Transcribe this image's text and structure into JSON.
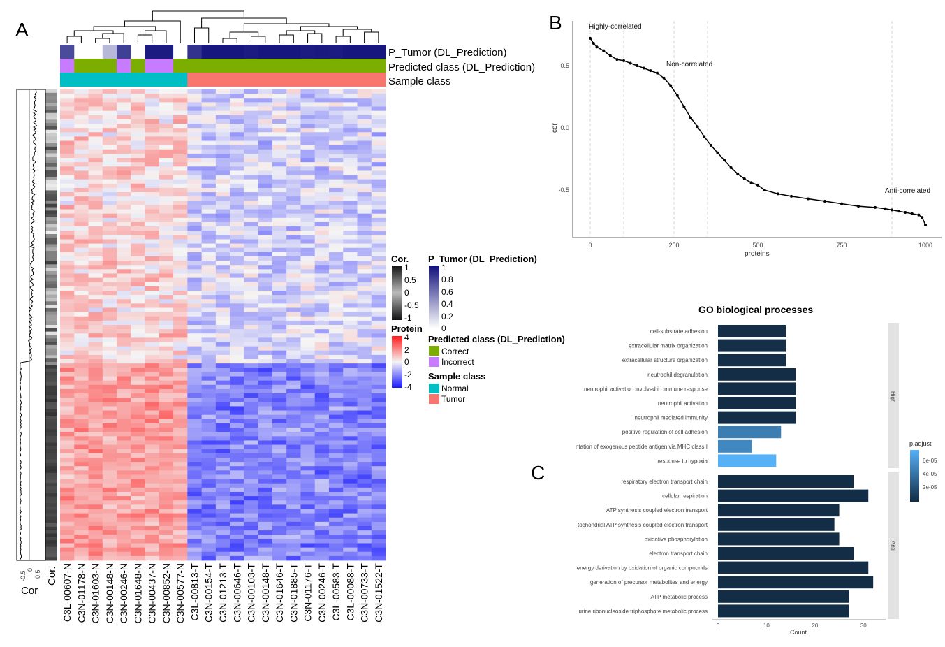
{
  "panels": {
    "a": "A",
    "b": "B",
    "c": "C"
  },
  "heatmap": {
    "annotation_labels": [
      "P_Tumor (DL_Prediction)",
      "Predicted class (DL_Prediction)",
      "Sample class"
    ],
    "samples": [
      "C3L-00607-N",
      "C3N-01178-N",
      "C3N-01603-N",
      "C3N-00148-N",
      "C3N-00246-N",
      "C3N-01648-N",
      "C3N-00437-N",
      "C3N-00852-N",
      "C3N-00577-N",
      "C3L-00813-T",
      "C3N-00154-T",
      "C3N-01213-T",
      "C3N-00646-T",
      "C3N-00103-T",
      "C3N-00148-T",
      "C3N-01646-T",
      "C3N-01885-T",
      "C3N-01176-T",
      "C3N-00246-T",
      "C3L-00583-T",
      "C3L-00088-T",
      "C3N-00733-T",
      "C3N-01522-T"
    ],
    "p_tumor": [
      0.75,
      0,
      0,
      0.3,
      0.8,
      0,
      0.95,
      0.95,
      0,
      0.85,
      0.97,
      0.97,
      0.97,
      0.95,
      0.97,
      0.97,
      0.97,
      0.95,
      0.96,
      0.95,
      0.97,
      0.97,
      0.97
    ],
    "predicted_class": [
      "Incorrect",
      "Correct",
      "Correct",
      "Correct",
      "Incorrect",
      "Correct",
      "Incorrect",
      "Incorrect",
      "Correct",
      "Correct",
      "Correct",
      "Correct",
      "Correct",
      "Correct",
      "Correct",
      "Correct",
      "Correct",
      "Correct",
      "Correct",
      "Correct",
      "Correct",
      "Correct",
      "Correct"
    ],
    "sample_class": [
      "Normal",
      "Normal",
      "Normal",
      "Normal",
      "Normal",
      "Normal",
      "Normal",
      "Normal",
      "Normal",
      "Tumor",
      "Tumor",
      "Tumor",
      "Tumor",
      "Tumor",
      "Tumor",
      "Tumor",
      "Tumor",
      "Tumor",
      "Tumor",
      "Tumor",
      "Tumor",
      "Tumor",
      "Tumor"
    ],
    "cor_axis_label": "Cor",
    "cor_axis_ticks": [
      "-0.5",
      "0",
      "0.5"
    ],
    "cor_column_label": "Cor."
  },
  "legends": {
    "cor": {
      "title": "Cor.",
      "ticks": [
        "1",
        "0.5",
        "0",
        "-0.5",
        "-1"
      ]
    },
    "protein": {
      "title": "Protein",
      "ticks": [
        "4",
        "2",
        "0",
        "-2",
        "-4"
      ]
    },
    "p_tumor": {
      "title": "P_Tumor (DL_Prediction)",
      "ticks": [
        "1",
        "0.8",
        "0.6",
        "0.4",
        "0.2",
        "0"
      ]
    },
    "predicted_class": {
      "title": "Predicted class (DL_Prediction)",
      "items": [
        "Correct",
        "Incorrect"
      ]
    },
    "sample_class": {
      "title": "Sample class",
      "items": [
        "Normal",
        "Tumor"
      ]
    }
  },
  "colors": {
    "correct": "#7cae00",
    "incorrect": "#c77cff",
    "normal": "#00bfc4",
    "tumor": "#f8766d",
    "p_high": "#0f0f7a",
    "p_low": "#ffffff",
    "heat_low": "#1818ff",
    "heat_mid": "#f5f5f5",
    "heat_high": "#ff1a1a",
    "go_dark": "#132b43",
    "go_light": "#56b1f7"
  },
  "chart_data": [
    {
      "type": "scatter",
      "panel": "B",
      "xlabel": "proteins",
      "ylabel": "cor",
      "xlim": [
        0,
        1000
      ],
      "ylim": [
        -0.8,
        0.75
      ],
      "x_ticks": [
        "0",
        "250",
        "500",
        "750",
        "1000"
      ],
      "y_ticks": [
        "0.5",
        "0.0",
        "-0.5"
      ],
      "annotations": [
        "Highly-correlated",
        "Non-correlated",
        "Anti-correlated"
      ],
      "x": [
        0,
        10,
        20,
        40,
        60,
        80,
        100,
        120,
        140,
        160,
        180,
        200,
        220,
        240,
        260,
        280,
        300,
        320,
        340,
        360,
        380,
        400,
        420,
        440,
        460,
        480,
        500,
        520,
        560,
        600,
        650,
        700,
        750,
        800,
        850,
        880,
        900,
        920,
        940,
        960,
        980,
        990,
        1000
      ],
      "y": [
        0.72,
        0.68,
        0.65,
        0.62,
        0.58,
        0.55,
        0.54,
        0.52,
        0.5,
        0.48,
        0.46,
        0.44,
        0.4,
        0.34,
        0.26,
        0.17,
        0.08,
        0.01,
        -0.07,
        -0.14,
        -0.2,
        -0.26,
        -0.32,
        -0.37,
        -0.41,
        -0.44,
        -0.46,
        -0.5,
        -0.53,
        -0.55,
        -0.57,
        -0.59,
        -0.61,
        -0.63,
        -0.64,
        -0.65,
        -0.66,
        -0.67,
        -0.68,
        -0.69,
        -0.7,
        -0.72,
        -0.78
      ],
      "grid": true
    },
    {
      "type": "bar",
      "panel": "C",
      "title": "GO biological processes",
      "xlabel": "Count",
      "x_ticks": [
        "0",
        "10",
        "20",
        "30"
      ],
      "xlim": [
        0,
        35
      ],
      "legend_title": "p.adjust",
      "legend_ticks": [
        "6e-05",
        "4e-05",
        "2e-05"
      ],
      "groups": [
        {
          "name": "High",
          "categories": [
            "cell-substrate adhesion",
            "extracellular matrix organization",
            "extracellular structure organization",
            "neutrophil degranulation",
            "neutrophil activation involved in immune response",
            "neutrophil activation",
            "neutrophil mediated immunity",
            "positive regulation of cell adhesion",
            "ntation of exogenous peptide antigen via MHC class I",
            "response to hypoxia"
          ],
          "values": [
            14,
            14,
            14,
            16,
            16,
            16,
            16,
            13,
            7,
            12
          ],
          "p_adjust": [
            2e-06,
            2e-06,
            2e-06,
            1e-06,
            1e-06,
            1e-06,
            1e-06,
            4e-05,
            4.5e-05,
            6.5e-05
          ]
        },
        {
          "name": "Anti",
          "categories": [
            "respiratory electron transport chain",
            "cellular respiration",
            "ATP synthesis coupled electron transport",
            "tochondrial ATP synthesis coupled electron transport",
            "oxidative phosphorylation",
            "electron transport chain",
            "energy derivation by oxidation of organic compounds",
            "generation of precursor metabolites and energy",
            "ATP metabolic process",
            "urine ribonucleoside triphosphate metabolic process"
          ],
          "values": [
            28,
            31,
            25,
            24,
            25,
            28,
            31,
            32,
            27,
            27
          ],
          "p_adjust": [
            1e-06,
            1e-06,
            1e-06,
            1e-06,
            1e-06,
            1e-06,
            1e-06,
            1e-06,
            1e-06,
            1e-06
          ]
        }
      ]
    }
  ]
}
